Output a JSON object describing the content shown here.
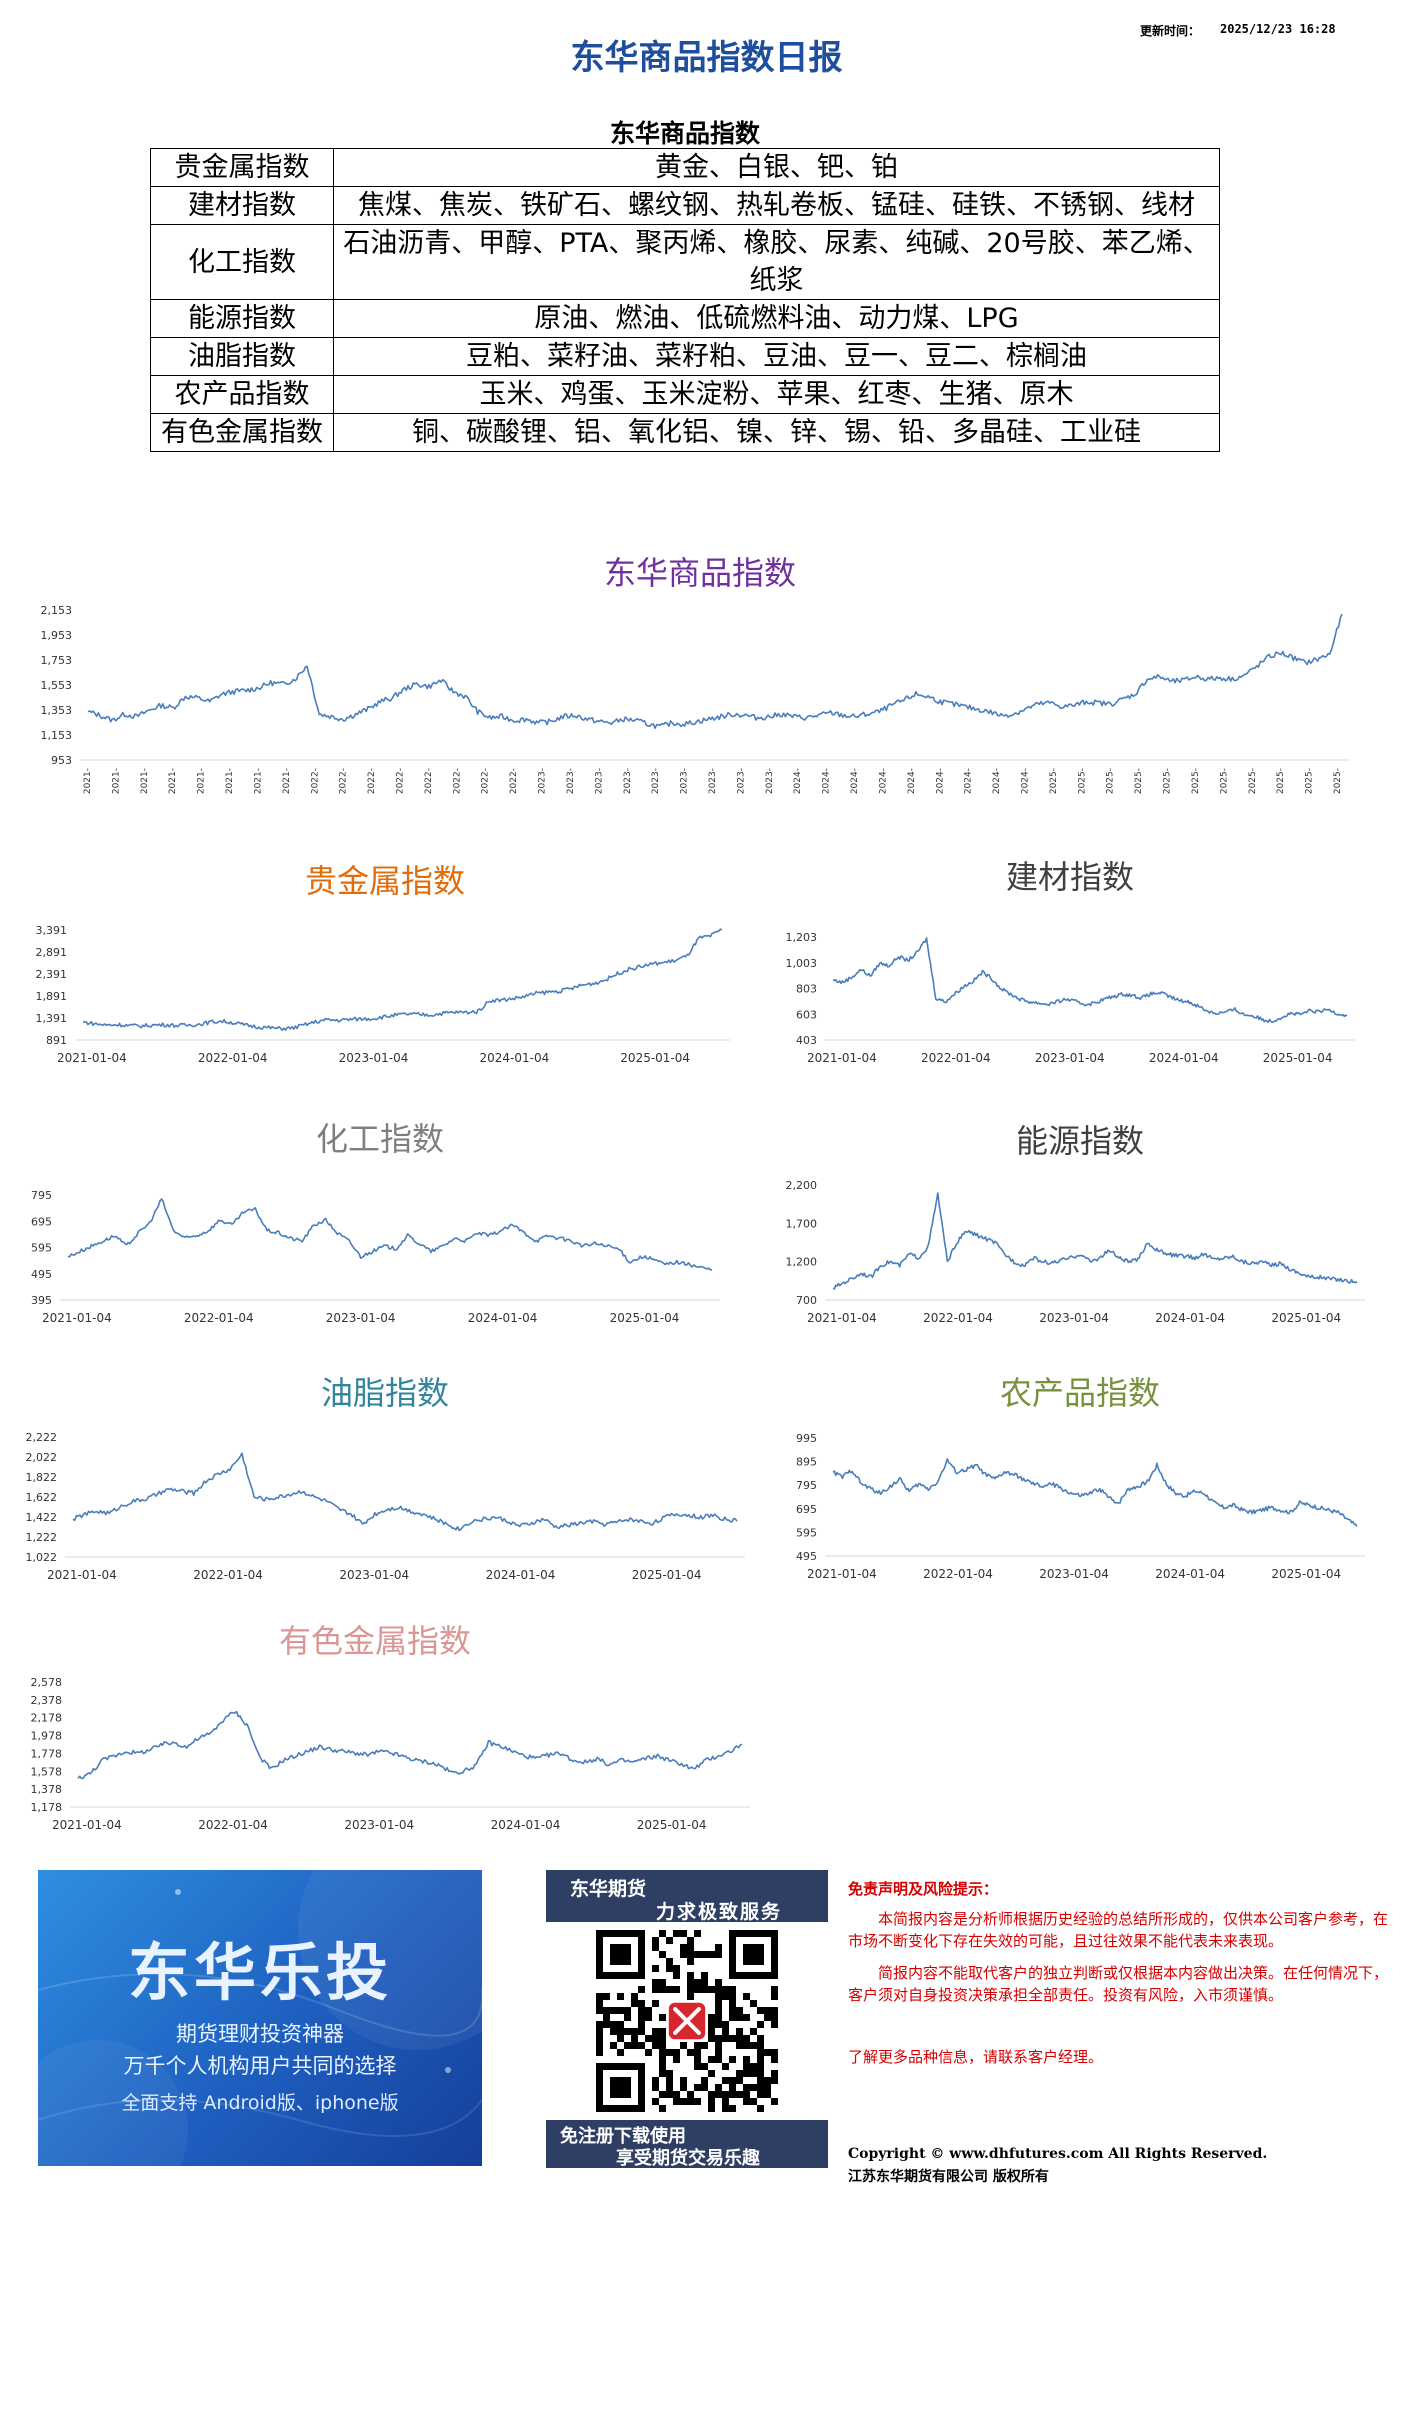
{
  "header": {
    "title": "东华商品指数日报",
    "update_label": "更新时间：",
    "update_time": "2025/12/23 16:28"
  },
  "table": {
    "title": "东华商品指数",
    "rows": [
      {
        "name": "贵金属指数",
        "items": "黄金、白银、钯、铂"
      },
      {
        "name": "建材指数",
        "items": "焦煤、焦炭、铁矿石、螺纹钢、热轧卷板、锰硅、硅铁、不锈钢、线材"
      },
      {
        "name": "化工指数",
        "items": "石油沥青、甲醇、PTA、聚丙烯、橡胶、尿素、纯碱、20号胶、苯乙烯、纸浆"
      },
      {
        "name": "能源指数",
        "items": "原油、燃油、低硫燃料油、动力煤、LPG"
      },
      {
        "name": "油脂指数",
        "items": "豆粕、菜籽油、菜籽粕、豆油、豆一、豆二、棕榈油"
      },
      {
        "name": "农产品指数",
        "items": "玉米、鸡蛋、玉米淀粉、苹果、红枣、生猪、原木"
      },
      {
        "name": "有色金属指数",
        "items": "铜、碳酸锂、铝、氧化铝、镍、锌、锡、铅、多晶硅、工业硅"
      }
    ]
  },
  "colors": {
    "title_blue": "#1f4e9c",
    "line": "#4a7ebb",
    "main_chart_title": "#7030a0",
    "precious_title": "#e36c09",
    "building_title": "#404040",
    "chem_title": "#7f7f7f",
    "energy_title": "#404040",
    "oils_title": "#31859c",
    "agri_title": "#76923c",
    "nonferrous_title": "#d99694",
    "disclaimer": "#d40000"
  },
  "chart_data": [
    {
      "type": "line",
      "title": "东华商品指数",
      "yticks": [
        2153,
        1953,
        1753,
        1553,
        1353,
        1153,
        953
      ],
      "ylim": [
        953,
        2153
      ],
      "xtick_label": "2021-",
      "xtick_count": 45,
      "x_start": "2021-01-04",
      "x_end": "2025-12-23",
      "series": [
        {
          "values": [
            1340,
            1310,
            1270,
            1320,
            1300,
            1350,
            1390,
            1370,
            1460,
            1450,
            1420,
            1480,
            1500,
            1510,
            1530,
            1570,
            1560,
            1600,
            1710,
            1320,
            1300,
            1280,
            1320,
            1360,
            1420,
            1450,
            1520,
            1560,
            1540,
            1590,
            1500,
            1460,
            1340,
            1290,
            1300,
            1270,
            1280,
            1250,
            1260,
            1300,
            1310,
            1280,
            1260,
            1250,
            1280,
            1270,
            1240,
            1220,
            1250,
            1240,
            1260,
            1280,
            1300,
            1320,
            1310,
            1290,
            1300,
            1320,
            1300,
            1290,
            1310,
            1330,
            1310,
            1300,
            1320,
            1340,
            1390,
            1430,
            1480,
            1460,
            1420,
            1400,
            1380,
            1360,
            1340,
            1310,
            1320,
            1360,
            1400,
            1410,
            1380,
            1390,
            1420,
            1410,
            1400,
            1440,
            1480,
            1600,
            1620,
            1580,
            1590,
            1620,
            1600,
            1610,
            1600,
            1630,
            1700,
            1780,
            1810,
            1770,
            1730,
            1760,
            1800,
            2120
          ]
        }
      ]
    },
    {
      "type": "line",
      "title": "贵金属指数",
      "yticks": [
        3391,
        2891,
        2391,
        1891,
        1391,
        891
      ],
      "ylim": [
        891,
        3391
      ],
      "xticks": [
        "2021-01-04",
        "2022-01-04",
        "2023-01-04",
        "2024-01-04",
        "2025-01-04"
      ],
      "x_start": "2021-01-04",
      "x_end": "2025-12-23",
      "series": [
        {
          "values": [
            1300,
            1260,
            1230,
            1240,
            1220,
            1210,
            1230,
            1240,
            1220,
            1230,
            1250,
            1300,
            1320,
            1280,
            1230,
            1190,
            1170,
            1150,
            1160,
            1230,
            1300,
            1350,
            1340,
            1360,
            1370,
            1380,
            1420,
            1460,
            1480,
            1470,
            1460,
            1500,
            1520,
            1520,
            1540,
            1790,
            1800,
            1830,
            1880,
            1950,
            1980,
            2000,
            2060,
            2140,
            2180,
            2260,
            2400,
            2500,
            2560,
            2620,
            2650,
            2700,
            2800,
            3200,
            3250,
            3400
          ]
        }
      ]
    },
    {
      "type": "line",
      "title": "建材指数",
      "yticks": [
        1203,
        1003,
        803,
        603,
        403
      ],
      "ylim": [
        403,
        1203
      ],
      "xticks": [
        "2021-01-04",
        "2022-01-04",
        "2023-01-04",
        "2024-01-04",
        "2025-01-04"
      ],
      "x_start": "2021-01-04",
      "x_end": "2025-12-23",
      "series": [
        {
          "values": [
            870,
            850,
            890,
            950,
            900,
            1000,
            980,
            1050,
            1020,
            1080,
            1190,
            730,
            700,
            760,
            820,
            860,
            930,
            880,
            800,
            760,
            720,
            700,
            690,
            680,
            700,
            720,
            700,
            680,
            690,
            720,
            740,
            760,
            750,
            730,
            760,
            770,
            740,
            710,
            700,
            670,
            630,
            610,
            620,
            640,
            600,
            590,
            560,
            550,
            580,
            610,
            600,
            630,
            620,
            640,
            610,
            590
          ]
        }
      ]
    },
    {
      "type": "line",
      "title": "化工指数",
      "yticks": [
        795,
        695,
        595,
        495,
        395
      ],
      "ylim": [
        395,
        795
      ],
      "xticks": [
        "2021-01-04",
        "2022-01-04",
        "2023-01-04",
        "2024-01-04",
        "2025-01-04"
      ],
      "x_start": "2021-01-04",
      "x_end": "2025-12-23",
      "series": [
        {
          "values": [
            560,
            580,
            600,
            620,
            640,
            600,
            650,
            690,
            780,
            660,
            630,
            640,
            660,
            700,
            680,
            730,
            740,
            660,
            650,
            630,
            620,
            680,
            700,
            650,
            620,
            560,
            580,
            600,
            590,
            640,
            610,
            580,
            600,
            630,
            620,
            650,
            640,
            660,
            680,
            650,
            620,
            640,
            630,
            620,
            600,
            610,
            600,
            590,
            540,
            560,
            550,
            530,
            540,
            530,
            520,
            510
          ]
        }
      ]
    },
    {
      "type": "line",
      "title": "能源指数",
      "yticks": [
        2200,
        1700,
        1200,
        700
      ],
      "ylim": [
        700,
        2200
      ],
      "xticks": [
        "2021-01-04",
        "2022-01-04",
        "2023-01-04",
        "2024-01-04",
        "2025-01-04"
      ],
      "x_start": "2021-01-04",
      "x_end": "2025-12-23",
      "series": [
        {
          "values": [
            850,
            920,
            980,
            1050,
            1000,
            1150,
            1200,
            1150,
            1300,
            1250,
            1400,
            2080,
            1200,
            1450,
            1600,
            1550,
            1500,
            1450,
            1300,
            1200,
            1150,
            1250,
            1200,
            1180,
            1220,
            1250,
            1300,
            1200,
            1250,
            1350,
            1250,
            1200,
            1220,
            1450,
            1350,
            1300,
            1280,
            1270,
            1250,
            1300,
            1230,
            1250,
            1270,
            1200,
            1180,
            1200,
            1150,
            1180,
            1100,
            1050,
            1000,
            1000,
            980,
            970,
            950,
            940
          ]
        }
      ]
    },
    {
      "type": "line",
      "title": "油脂指数",
      "yticks": [
        2222,
        2022,
        1822,
        1622,
        1422,
        1222,
        1022
      ],
      "ylim": [
        1022,
        2222
      ],
      "xticks": [
        "2021-01-04",
        "2022-01-04",
        "2023-01-04",
        "2024-01-04",
        "2025-01-04"
      ],
      "x_start": "2021-01-04",
      "x_end": "2025-12-23",
      "series": [
        {
          "values": [
            1400,
            1450,
            1480,
            1460,
            1530,
            1580,
            1600,
            1650,
            1700,
            1680,
            1660,
            1780,
            1850,
            1900,
            2050,
            1620,
            1600,
            1620,
            1650,
            1680,
            1620,
            1580,
            1500,
            1450,
            1350,
            1450,
            1500,
            1520,
            1480,
            1450,
            1400,
            1350,
            1300,
            1380,
            1400,
            1420,
            1380,
            1330,
            1360,
            1400,
            1320,
            1340,
            1360,
            1380,
            1350,
            1370,
            1400,
            1380,
            1360,
            1420,
            1450,
            1440,
            1420,
            1440,
            1400,
            1380
          ]
        }
      ]
    },
    {
      "type": "line",
      "title": "农产品指数",
      "yticks": [
        995,
        895,
        795,
        695,
        595,
        495
      ],
      "ylim": [
        495,
        995
      ],
      "xticks": [
        "2021-01-04",
        "2022-01-04",
        "2023-01-04",
        "2024-01-04",
        "2025-01-04"
      ],
      "x_start": "2021-01-04",
      "x_end": "2025-12-23",
      "series": [
        {
          "values": [
            850,
            830,
            860,
            800,
            780,
            760,
            790,
            820,
            770,
            800,
            780,
            810,
            900,
            850,
            860,
            880,
            840,
            820,
            850,
            840,
            820,
            800,
            790,
            800,
            780,
            760,
            750,
            760,
            780,
            740,
            720,
            780,
            790,
            810,
            880,
            800,
            760,
            750,
            770,
            760,
            720,
            700,
            710,
            690,
            680,
            690,
            700,
            690,
            680,
            720,
            710,
            700,
            690,
            680,
            650,
            620
          ]
        }
      ]
    },
    {
      "type": "line",
      "title": "有色金属指数",
      "yticks": [
        2578,
        2378,
        2178,
        1978,
        1778,
        1578,
        1378,
        1178
      ],
      "ylim": [
        1178,
        2578
      ],
      "xticks": [
        "2021-01-04",
        "2022-01-04",
        "2023-01-04",
        "2024-01-04",
        "2025-01-04"
      ],
      "x_start": "2021-01-04",
      "x_end": "2025-12-23",
      "series": [
        {
          "values": [
            1500,
            1550,
            1700,
            1750,
            1800,
            1780,
            1820,
            1880,
            1900,
            1850,
            1950,
            2000,
            2150,
            2250,
            2100,
            1750,
            1600,
            1700,
            1750,
            1800,
            1850,
            1820,
            1800,
            1780,
            1760,
            1800,
            1780,
            1740,
            1700,
            1680,
            1640,
            1560,
            1580,
            1650,
            1900,
            1860,
            1800,
            1750,
            1720,
            1760,
            1780,
            1700,
            1680,
            1720,
            1650,
            1700,
            1680,
            1720,
            1750,
            1700,
            1660,
            1600,
            1700,
            1750,
            1800,
            1880
          ]
        }
      ]
    }
  ],
  "promo": {
    "title": "东华乐投",
    "line1": "期货理财投资神器",
    "line2": "万千个人机构用户共同的选择",
    "line3": "全面支持 Android版、iphone版"
  },
  "qr": {
    "header1": "东华期货",
    "header2": "力求极致服务",
    "footer1": "免注册下载使用",
    "footer2": "享受期货交易乐趣"
  },
  "disclaimer": {
    "title": "免责声明及风险提示：",
    "p1": "本简报内容是分析师根据历史经验的总结所形成的，仅供本公司客户参考，在市场不断变化下存在失效的可能，且过往效果不能代表未来表现。",
    "p2": "简报内容不能取代客户的独立判断或仅根据本内容做出决策。在任何情况下，客户须对自身投资决策承担全部责任。投资有风险，入市须谨慎。",
    "p3": "了解更多品种信息，请联系客户经理。",
    "copyright1": "Copyright © www.dhfutures.com  All Rights Reserved.",
    "copyright2": "江苏东华期货有限公司  版权所有"
  }
}
